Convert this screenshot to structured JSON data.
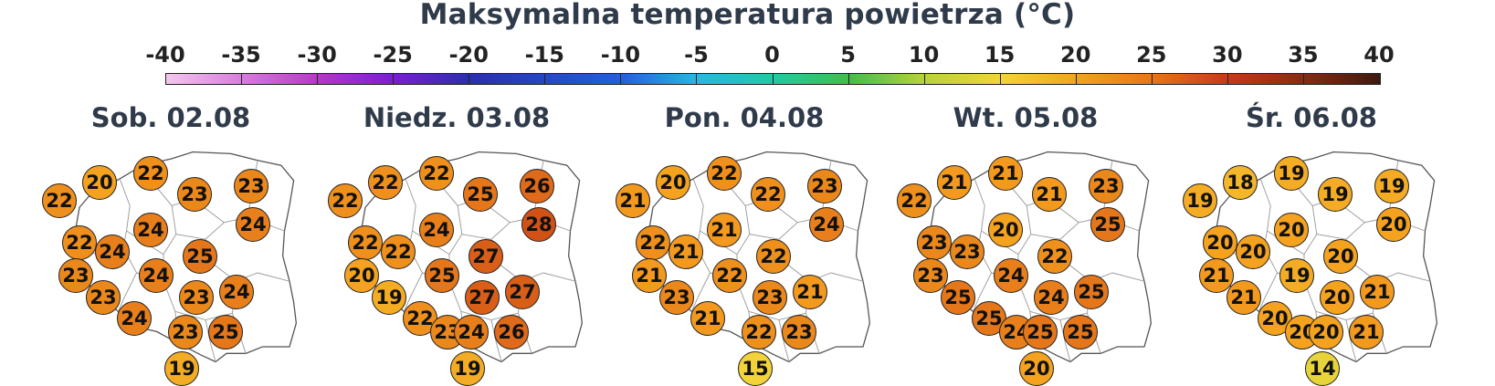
{
  "title": "Maksymalna temperatura powietrza (°C)",
  "scale": {
    "labels": [
      "-40",
      "-35",
      "-30",
      "-25",
      "-20",
      "-15",
      "-10",
      "-5",
      "0",
      "5",
      "10",
      "15",
      "20",
      "25",
      "30",
      "35",
      "40"
    ],
    "min": -40,
    "max": 40,
    "stops": [
      {
        "t": -40,
        "color": "#f4c6ee"
      },
      {
        "t": -30,
        "color": "#bb33cc"
      },
      {
        "t": -25,
        "color": "#7a1fcf"
      },
      {
        "t": -20,
        "color": "#2a2fa8"
      },
      {
        "t": -10,
        "color": "#1f62d8"
      },
      {
        "t": -5,
        "color": "#2bb5e8"
      },
      {
        "t": 0,
        "color": "#23c9a4"
      },
      {
        "t": 5,
        "color": "#3fbf4a"
      },
      {
        "t": 10,
        "color": "#b8d23c"
      },
      {
        "t": 15,
        "color": "#f2d43a"
      },
      {
        "t": 20,
        "color": "#f5a21f"
      },
      {
        "t": 25,
        "color": "#e5761a"
      },
      {
        "t": 30,
        "color": "#c63a14"
      },
      {
        "t": 35,
        "color": "#8a2a12"
      },
      {
        "t": 40,
        "color": "#3e1a0e"
      }
    ]
  },
  "days": [
    {
      "label": "Sob. 02.08",
      "values": [
        20,
        22,
        23,
        23,
        22,
        24,
        24,
        22,
        24,
        25,
        24,
        23,
        23,
        24,
        23,
        24,
        23,
        25,
        19
      ]
    },
    {
      "label": "Niedz. 03.08",
      "values": [
        22,
        22,
        25,
        26,
        22,
        24,
        28,
        22,
        22,
        27,
        20,
        25,
        27,
        19,
        26,
        22,
        23,
        24,
        27,
        19
      ]
    },
    {
      "label": "Pon. 04.08",
      "values": [
        20,
        22,
        22,
        23,
        21,
        21,
        24,
        22,
        21,
        22,
        22,
        21,
        23,
        21,
        23,
        21,
        22,
        23,
        15
      ]
    },
    {
      "label": "Wt. 05.08",
      "values": [
        21,
        21,
        21,
        23,
        22,
        20,
        25,
        23,
        23,
        22,
        23,
        24,
        24,
        25,
        25,
        25,
        24,
        25,
        25,
        20
      ]
    },
    {
      "label": "Śr. 06.08",
      "values": [
        18,
        19,
        19,
        19,
        19,
        20,
        20,
        20,
        20,
        20,
        21,
        19,
        20,
        21,
        21,
        20,
        20,
        20,
        21,
        14
      ]
    }
  ]
}
